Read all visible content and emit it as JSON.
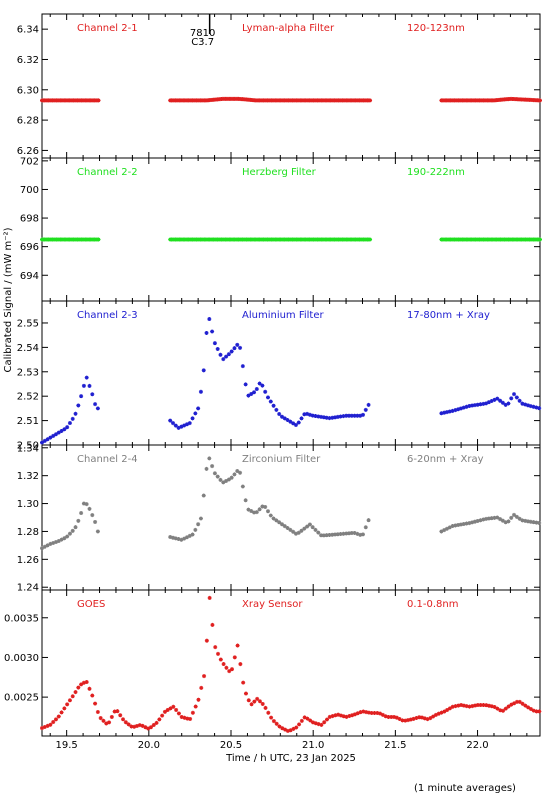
{
  "chart_data": [
    {
      "type": "scatter",
      "labels": [
        "Channel 2-1",
        "Lyman-alpha Filter",
        "120-123nm"
      ],
      "color": "#e02020",
      "ylim": [
        6.255,
        6.35
      ],
      "yticks": [
        "6.26",
        "6.28",
        "6.30",
        "6.32",
        "6.34"
      ],
      "yticks_values": [
        6.26,
        6.28,
        6.3,
        6.32,
        6.34
      ],
      "segments": [
        {
          "x0": 19.35,
          "x1": 19.7,
          "points": [
            [
              19.35,
              6.293
            ],
            [
              19.7,
              6.293
            ]
          ]
        },
        {
          "x0": 20.13,
          "x1": 21.35,
          "points": [
            [
              20.13,
              6.293
            ],
            [
              20.35,
              6.293
            ],
            [
              20.45,
              6.294
            ],
            [
              20.55,
              6.294
            ],
            [
              20.65,
              6.293
            ],
            [
              21.35,
              6.293
            ]
          ]
        },
        {
          "x0": 21.78,
          "x1": 22.38,
          "points": [
            [
              21.78,
              6.293
            ],
            [
              22.1,
              6.293
            ],
            [
              22.2,
              6.294
            ],
            [
              22.38,
              6.293
            ]
          ]
        }
      ],
      "flare_marker": {
        "x": 20.37,
        "labels": [
          "7810",
          "C3.7"
        ]
      }
    },
    {
      "type": "scatter",
      "labels": [
        "Channel 2-2",
        "Herzberg Filter",
        "190-222nm"
      ],
      "color": "#20e020",
      "ylim": [
        692.2,
        702.2
      ],
      "yticks": [
        "694",
        "696",
        "698",
        "700",
        "702"
      ],
      "yticks_values": [
        694,
        696,
        698,
        700,
        702
      ],
      "segments": [
        {
          "x0": 19.35,
          "x1": 19.7,
          "points": [
            [
              19.35,
              696.5
            ],
            [
              19.7,
              696.5
            ]
          ]
        },
        {
          "x0": 20.13,
          "x1": 21.35,
          "points": [
            [
              20.13,
              696.5
            ],
            [
              21.35,
              696.5
            ]
          ]
        },
        {
          "x0": 21.78,
          "x1": 22.38,
          "points": [
            [
              21.78,
              696.5
            ],
            [
              22.38,
              696.5
            ]
          ]
        }
      ]
    },
    {
      "type": "scatter",
      "labels": [
        "Channel 2-3",
        "Aluminium Filter",
        "17-80nm + Xray"
      ],
      "color": "#2020d0",
      "ylim": [
        2.5,
        2.559
      ],
      "yticks": [
        "2.50",
        "2.51",
        "2.52",
        "2.53",
        "2.54",
        "2.55"
      ],
      "yticks_values": [
        2.5,
        2.51,
        2.52,
        2.53,
        2.54,
        2.55
      ],
      "segments": [
        {
          "x0": 19.35,
          "x1": 19.7,
          "points": [
            [
              19.35,
              2.501
            ],
            [
              19.4,
              2.503
            ],
            [
              19.45,
              2.505
            ],
            [
              19.5,
              2.507
            ],
            [
              19.55,
              2.512
            ],
            [
              19.58,
              2.518
            ],
            [
              19.6,
              2.523
            ],
            [
              19.62,
              2.528
            ],
            [
              19.64,
              2.524
            ],
            [
              19.66,
              2.52
            ],
            [
              19.68,
              2.515
            ]
          ]
        },
        {
          "x0": 20.13,
          "x1": 21.35,
          "points": [
            [
              20.13,
              2.51
            ],
            [
              20.18,
              2.507
            ],
            [
              20.25,
              2.509
            ],
            [
              20.3,
              2.515
            ],
            [
              20.33,
              2.527
            ],
            [
              20.36,
              2.554
            ],
            [
              20.4,
              2.542
            ],
            [
              20.45,
              2.535
            ],
            [
              20.5,
              2.538
            ],
            [
              20.55,
              2.542
            ],
            [
              20.6,
              2.52
            ],
            [
              20.65,
              2.522
            ],
            [
              20.68,
              2.526
            ],
            [
              20.72,
              2.52
            ],
            [
              20.8,
              2.512
            ],
            [
              20.9,
              2.508
            ],
            [
              20.95,
              2.513
            ],
            [
              21.0,
              2.512
            ],
            [
              21.1,
              2.511
            ],
            [
              21.2,
              2.512
            ],
            [
              21.3,
              2.512
            ],
            [
              21.35,
              2.518
            ]
          ]
        },
        {
          "x0": 21.78,
          "x1": 22.38,
          "points": [
            [
              21.78,
              2.513
            ],
            [
              21.85,
              2.514
            ],
            [
              21.95,
              2.516
            ],
            [
              22.05,
              2.517
            ],
            [
              22.12,
              2.519
            ],
            [
              22.18,
              2.516
            ],
            [
              22.22,
              2.521
            ],
            [
              22.27,
              2.517
            ],
            [
              22.32,
              2.516
            ],
            [
              22.38,
              2.515
            ]
          ]
        }
      ]
    },
    {
      "type": "scatter",
      "labels": [
        "Channel 2-4",
        "Zirconium Filter",
        "6-20nm + Xray"
      ],
      "color": "#808080",
      "ylim": [
        1.238,
        1.342
      ],
      "yticks": [
        "1.24",
        "1.26",
        "1.28",
        "1.30",
        "1.32",
        "1.34"
      ],
      "yticks_values": [
        1.24,
        1.26,
        1.28,
        1.3,
        1.32,
        1.34
      ],
      "segments": [
        {
          "x0": 19.35,
          "x1": 19.7,
          "points": [
            [
              19.35,
              1.268
            ],
            [
              19.4,
              1.271
            ],
            [
              19.45,
              1.273
            ],
            [
              19.5,
              1.276
            ],
            [
              19.55,
              1.282
            ],
            [
              19.58,
              1.29
            ],
            [
              19.61,
              1.302
            ],
            [
              19.64,
              1.296
            ],
            [
              19.67,
              1.288
            ],
            [
              19.7,
              1.276
            ]
          ]
        },
        {
          "x0": 20.13,
          "x1": 21.35,
          "points": [
            [
              20.13,
              1.276
            ],
            [
              20.2,
              1.274
            ],
            [
              20.27,
              1.278
            ],
            [
              20.32,
              1.29
            ],
            [
              20.36,
              1.335
            ],
            [
              20.4,
              1.322
            ],
            [
              20.45,
              1.315
            ],
            [
              20.5,
              1.318
            ],
            [
              20.55,
              1.325
            ],
            [
              20.6,
              1.296
            ],
            [
              20.65,
              1.293
            ],
            [
              20.7,
              1.299
            ],
            [
              20.75,
              1.29
            ],
            [
              20.85,
              1.282
            ],
            [
              20.9,
              1.278
            ],
            [
              20.98,
              1.285
            ],
            [
              21.05,
              1.277
            ],
            [
              21.15,
              1.278
            ],
            [
              21.25,
              1.279
            ],
            [
              21.3,
              1.277
            ],
            [
              21.35,
              1.292
            ]
          ]
        },
        {
          "x0": 21.78,
          "x1": 22.38,
          "points": [
            [
              21.78,
              1.28
            ],
            [
              21.85,
              1.284
            ],
            [
              21.95,
              1.286
            ],
            [
              22.05,
              1.289
            ],
            [
              22.12,
              1.29
            ],
            [
              22.18,
              1.286
            ],
            [
              22.22,
              1.292
            ],
            [
              22.27,
              1.288
            ],
            [
              22.32,
              1.287
            ],
            [
              22.38,
              1.286
            ]
          ]
        }
      ]
    },
    {
      "type": "scatter",
      "labels": [
        "GOES",
        "Xray Sensor",
        "0.1-0.8nm"
      ],
      "color": "#e02020",
      "ylim": [
        0.00201,
        0.00385
      ],
      "yticks": [
        "0.0025",
        "0.0030",
        "0.0035"
      ],
      "yticks_values": [
        0.0025,
        0.003,
        0.0035
      ],
      "xlabel": "Time / h UTC, 23 Jan 2025",
      "xticks": [
        "19.5",
        "20.0",
        "20.5",
        "21.0",
        "21.5",
        "22.0"
      ],
      "xticks_values": [
        19.5,
        20.0,
        20.5,
        21.0,
        21.5,
        22.0
      ],
      "segments": [
        {
          "x0": 19.35,
          "x1": 22.38,
          "points": [
            [
              19.35,
              0.00211
            ],
            [
              19.4,
              0.00215
            ],
            [
              19.45,
              0.00225
            ],
            [
              19.5,
              0.0024
            ],
            [
              19.55,
              0.00255
            ],
            [
              19.58,
              0.00265
            ],
            [
              19.62,
              0.0027
            ],
            [
              19.66,
              0.0025
            ],
            [
              19.7,
              0.00225
            ],
            [
              19.75,
              0.00215
            ],
            [
              19.8,
              0.00235
            ],
            [
              19.85,
              0.0022
            ],
            [
              19.9,
              0.00212
            ],
            [
              19.95,
              0.00215
            ],
            [
              20.0,
              0.0021
            ],
            [
              20.05,
              0.00218
            ],
            [
              20.1,
              0.00232
            ],
            [
              20.15,
              0.00238
            ],
            [
              20.2,
              0.00225
            ],
            [
              20.25,
              0.00222
            ],
            [
              20.3,
              0.00245
            ],
            [
              20.34,
              0.0028
            ],
            [
              20.37,
              0.00375
            ],
            [
              20.4,
              0.00315
            ],
            [
              20.43,
              0.003
            ],
            [
              20.46,
              0.0029
            ],
            [
              20.5,
              0.0028
            ],
            [
              20.54,
              0.00315
            ],
            [
              20.58,
              0.0026
            ],
            [
              20.62,
              0.0024
            ],
            [
              20.66,
              0.00248
            ],
            [
              20.7,
              0.0024
            ],
            [
              20.75,
              0.00222
            ],
            [
              20.8,
              0.00212
            ],
            [
              20.85,
              0.00207
            ],
            [
              20.9,
              0.00212
            ],
            [
              20.95,
              0.00225
            ],
            [
              21.0,
              0.00218
            ],
            [
              21.05,
              0.00215
            ],
            [
              21.1,
              0.00225
            ],
            [
              21.15,
              0.00228
            ],
            [
              21.2,
              0.00225
            ],
            [
              21.25,
              0.00228
            ],
            [
              21.3,
              0.00232
            ],
            [
              21.35,
              0.0023
            ],
            [
              21.4,
              0.0023
            ],
            [
              21.45,
              0.00225
            ],
            [
              21.5,
              0.00225
            ],
            [
              21.55,
              0.0022
            ],
            [
              21.6,
              0.00222
            ],
            [
              21.65,
              0.00225
            ],
            [
              21.7,
              0.00222
            ],
            [
              21.75,
              0.00228
            ],
            [
              21.8,
              0.00232
            ],
            [
              21.85,
              0.00238
            ],
            [
              21.9,
              0.0024
            ],
            [
              21.95,
              0.00238
            ],
            [
              22.0,
              0.0024
            ],
            [
              22.05,
              0.0024
            ],
            [
              22.1,
              0.00238
            ],
            [
              22.15,
              0.00232
            ],
            [
              22.2,
              0.0024
            ],
            [
              22.25,
              0.00245
            ],
            [
              22.3,
              0.00238
            ],
            [
              22.35,
              0.00232
            ],
            [
              22.38,
              0.00232
            ]
          ]
        }
      ]
    }
  ],
  "ylabel": "Calibrated Signal / (mW m⁻²)",
  "xlim": [
    19.35,
    22.38
  ],
  "footer": "(1 minute averages)"
}
